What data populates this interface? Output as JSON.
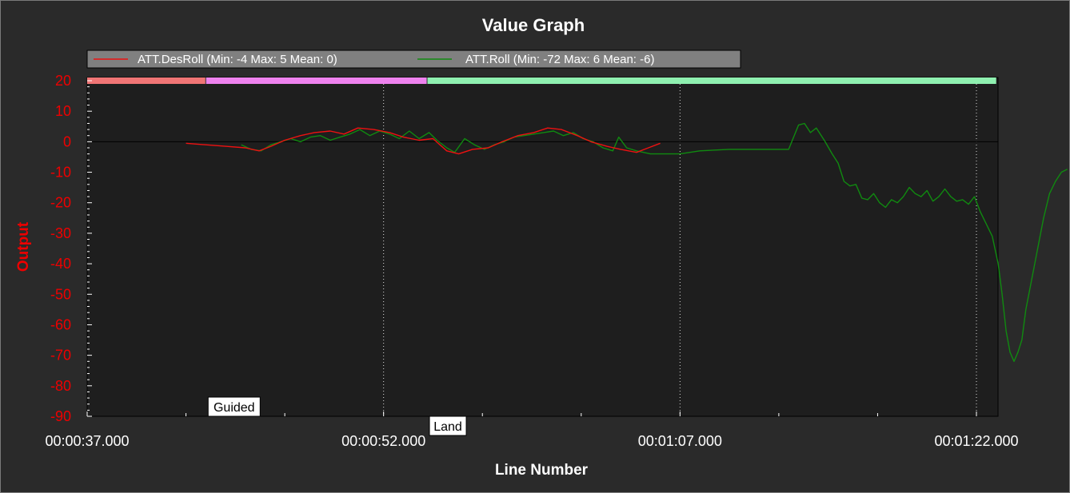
{
  "chart_data": {
    "type": "line",
    "title": "Value Graph",
    "xlabel": "Line Number",
    "ylabel": "Output",
    "xlim": [
      "00:00:37.000",
      "00:01:23.000"
    ],
    "ylim": [
      -90,
      20
    ],
    "y_ticks": [
      20,
      10,
      0,
      -10,
      -20,
      -30,
      -40,
      -50,
      -60,
      -70,
      -80,
      -90
    ],
    "x_ticks": [
      "00:00:37.000",
      "00:00:52.000",
      "00:01:07.000",
      "00:01:22.000"
    ],
    "x_tick_seconds": [
      37,
      52,
      67,
      82
    ],
    "grid": "vertical dotted at major x ticks; solid zero line",
    "legend_position": "top",
    "modes": [
      {
        "label": "",
        "start": 37,
        "end": 43,
        "color": "#f07575"
      },
      {
        "label": "Guided",
        "start": 43,
        "end": 54.2,
        "color": "#ee82ee"
      },
      {
        "label": "Land",
        "start": 54.2,
        "end": 83,
        "color": "#8ff0b0"
      }
    ],
    "series": [
      {
        "name": "ATT.DesRoll (Min: -4 Max: 5 Mean: 0)",
        "color": "#ee1111",
        "points": [
          [
            42,
            -0.5
          ],
          [
            43,
            -1
          ],
          [
            44,
            -1.5
          ],
          [
            45,
            -2
          ],
          [
            45.7,
            -3
          ],
          [
            46.3,
            -1.5
          ],
          [
            47,
            0.5
          ],
          [
            47.8,
            2
          ],
          [
            48.5,
            3
          ],
          [
            49.3,
            3.5
          ],
          [
            50,
            2.5
          ],
          [
            50.7,
            4.5
          ],
          [
            51.5,
            4
          ],
          [
            52.3,
            3
          ],
          [
            53,
            1.5
          ],
          [
            53.8,
            0.5
          ],
          [
            54.5,
            1
          ],
          [
            55.2,
            -3
          ],
          [
            55.8,
            -4
          ],
          [
            56.5,
            -2.5
          ],
          [
            57.3,
            -2
          ],
          [
            58,
            0
          ],
          [
            58.8,
            2
          ],
          [
            59.6,
            3
          ],
          [
            60.3,
            4.5
          ],
          [
            61,
            4
          ],
          [
            61.8,
            2
          ],
          [
            62.5,
            0
          ],
          [
            63.3,
            -1.5
          ],
          [
            64,
            -2.5
          ],
          [
            64.8,
            -3.5
          ],
          [
            65.4,
            -2
          ],
          [
            66,
            -0.5
          ]
        ]
      },
      {
        "name": "ATT.Roll (Min: -72 Max: 6 Mean: -6)",
        "color": "#108a10",
        "points": [
          [
            44.8,
            -1
          ],
          [
            45.3,
            -2.5
          ],
          [
            45.8,
            -3
          ],
          [
            46.3,
            -1
          ],
          [
            46.8,
            0
          ],
          [
            47.3,
            1
          ],
          [
            47.8,
            0
          ],
          [
            48.3,
            1.5
          ],
          [
            48.8,
            2
          ],
          [
            49.3,
            0.5
          ],
          [
            49.8,
            1.5
          ],
          [
            50.3,
            2.5
          ],
          [
            50.8,
            4
          ],
          [
            51.3,
            2
          ],
          [
            51.8,
            3.5
          ],
          [
            52.3,
            2.5
          ],
          [
            52.8,
            1
          ],
          [
            53.3,
            3.5
          ],
          [
            53.8,
            1
          ],
          [
            54.3,
            3
          ],
          [
            54.7,
            0.5
          ],
          [
            55.2,
            -2
          ],
          [
            55.6,
            -3.5
          ],
          [
            56.1,
            1
          ],
          [
            56.6,
            -1
          ],
          [
            57.1,
            -2.5
          ],
          [
            57.6,
            -1
          ],
          [
            58.1,
            0
          ],
          [
            58.6,
            1.5
          ],
          [
            59.1,
            2
          ],
          [
            59.6,
            2.5
          ],
          [
            60.1,
            3
          ],
          [
            60.6,
            3.5
          ],
          [
            61.1,
            2
          ],
          [
            61.6,
            3
          ],
          [
            62.1,
            1
          ],
          [
            62.6,
            0
          ],
          [
            63.1,
            -2
          ],
          [
            63.6,
            -3
          ],
          [
            63.9,
            1.5
          ],
          [
            64.3,
            -2
          ],
          [
            64.8,
            -3
          ],
          [
            65.5,
            -4
          ],
          [
            67,
            -4
          ],
          [
            68,
            -3
          ],
          [
            69.5,
            -2.5
          ],
          [
            71,
            -2.5
          ],
          [
            72.5,
            -2.5
          ],
          [
            73,
            5.5
          ],
          [
            73.3,
            6
          ],
          [
            73.6,
            3
          ],
          [
            73.9,
            4.5
          ],
          [
            74.3,
            0.5
          ],
          [
            74.7,
            -4
          ],
          [
            75,
            -7
          ],
          [
            75.3,
            -13
          ],
          [
            75.6,
            -14.5
          ],
          [
            75.9,
            -14
          ],
          [
            76.2,
            -18.5
          ],
          [
            76.5,
            -19
          ],
          [
            76.8,
            -17
          ],
          [
            77.1,
            -20
          ],
          [
            77.4,
            -21.5
          ],
          [
            77.7,
            -19
          ],
          [
            78,
            -20
          ],
          [
            78.3,
            -18
          ],
          [
            78.6,
            -15
          ],
          [
            78.9,
            -17
          ],
          [
            79.2,
            -18
          ],
          [
            79.5,
            -16
          ],
          [
            79.8,
            -19.5
          ],
          [
            80.1,
            -18
          ],
          [
            80.4,
            -15.5
          ],
          [
            80.7,
            -18
          ],
          [
            81,
            -19.5
          ],
          [
            81.3,
            -19
          ],
          [
            81.6,
            -20.5
          ],
          [
            81.9,
            -18
          ],
          [
            82.2,
            -23
          ],
          [
            82.5,
            -27
          ],
          [
            82.8,
            -31
          ],
          [
            83.1,
            -40
          ],
          [
            83.3,
            -50
          ],
          [
            83.5,
            -62
          ],
          [
            83.7,
            -69
          ],
          [
            83.9,
            -72
          ],
          [
            84.1,
            -69
          ],
          [
            84.3,
            -65
          ],
          [
            84.5,
            -55
          ],
          [
            84.8,
            -45
          ],
          [
            85.1,
            -35
          ],
          [
            85.4,
            -25
          ],
          [
            85.7,
            -17
          ],
          [
            86,
            -13
          ],
          [
            86.3,
            -10
          ],
          [
            86.6,
            -9
          ]
        ]
      }
    ]
  }
}
